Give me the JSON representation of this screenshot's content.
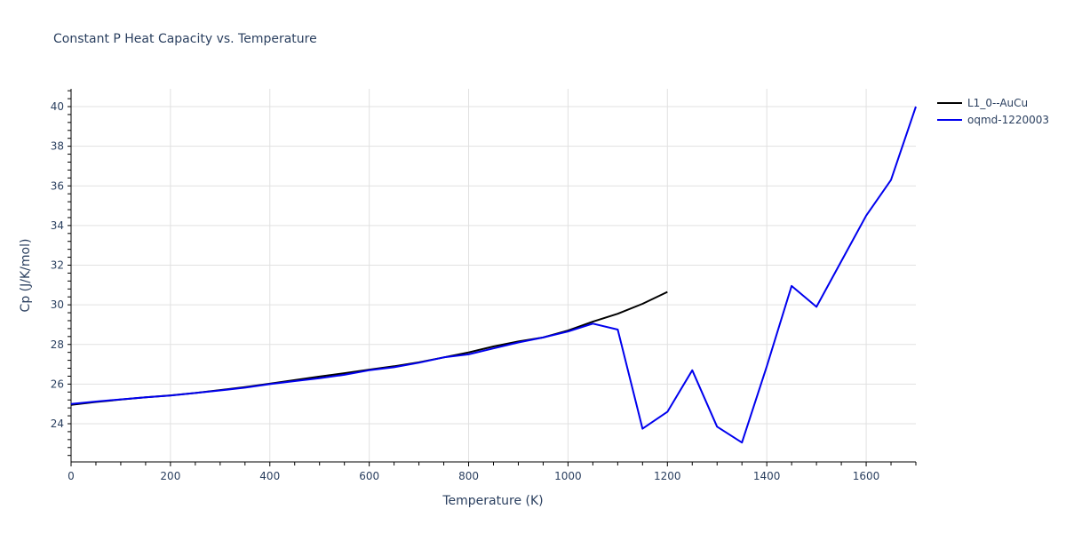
{
  "chart_data": {
    "type": "line",
    "title": "Constant P Heat Capacity vs. Temperature",
    "xlabel": "Temperature (K)",
    "ylabel": "Cp (J/K/mol)",
    "xlim": [
      0,
      1700
    ],
    "ylim": [
      22.2,
      40.9
    ],
    "x_ticks": [
      0,
      200,
      400,
      600,
      800,
      1000,
      1200,
      1400,
      1600
    ],
    "y_ticks": [
      24,
      26,
      28,
      30,
      32,
      34,
      36,
      38,
      40
    ],
    "grid": true,
    "legend_position": "top-right outside",
    "series": [
      {
        "name": "L1_0--AuCu",
        "color": "#000000",
        "x": [
          0,
          50,
          100,
          150,
          200,
          250,
          300,
          350,
          400,
          450,
          500,
          550,
          600,
          650,
          700,
          750,
          800,
          850,
          900,
          950,
          1000,
          1050,
          1100,
          1150,
          1200
        ],
        "values": [
          24.95,
          25.1,
          25.22,
          25.33,
          25.43,
          25.55,
          25.7,
          25.85,
          26.02,
          26.2,
          26.38,
          26.55,
          26.73,
          26.9,
          27.1,
          27.35,
          27.6,
          27.9,
          28.15,
          28.35,
          28.7,
          29.15,
          29.55,
          30.05,
          30.65
        ]
      },
      {
        "name": "oqmd-1220003",
        "color": "#0000ee",
        "x": [
          0,
          50,
          100,
          150,
          200,
          250,
          300,
          350,
          400,
          450,
          500,
          550,
          600,
          650,
          700,
          750,
          800,
          850,
          900,
          950,
          1000,
          1050,
          1100,
          1150,
          1200,
          1250,
          1300,
          1350,
          1400,
          1450,
          1500,
          1550,
          1600,
          1650,
          1700
        ],
        "values": [
          25.0,
          25.12,
          25.23,
          25.33,
          25.42,
          25.55,
          25.68,
          25.82,
          26.0,
          26.15,
          26.3,
          26.47,
          26.7,
          26.85,
          27.08,
          27.35,
          27.5,
          27.8,
          28.1,
          28.35,
          28.65,
          29.05,
          28.75,
          23.75,
          24.6,
          26.7,
          23.85,
          23.05,
          26.9,
          30.95,
          29.9,
          32.2,
          34.5,
          36.3,
          40.0
        ]
      }
    ]
  },
  "legend": {
    "items": [
      {
        "label": "L1_0--AuCu",
        "color": "#000000"
      },
      {
        "label": "oqmd-1220003",
        "color": "#0000ee"
      }
    ]
  },
  "colors": {
    "text": "#2a3f5f",
    "grid": "#e1e1e1",
    "axis": "#000000"
  }
}
